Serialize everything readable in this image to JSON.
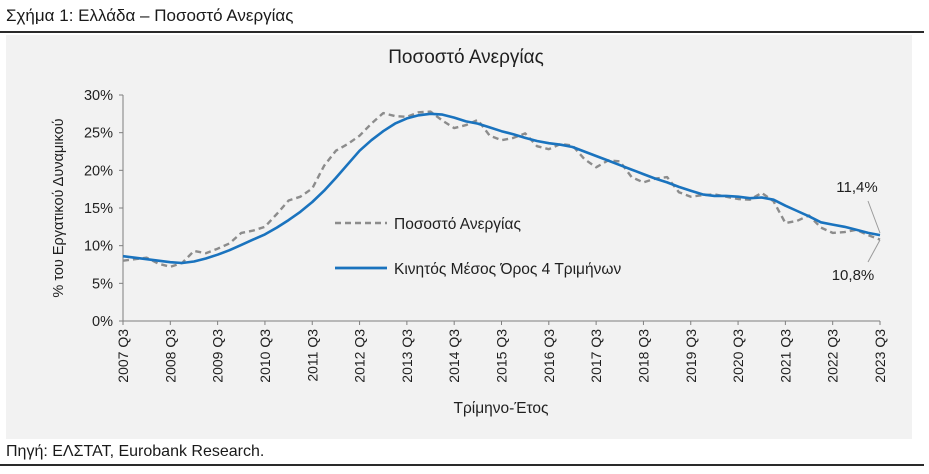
{
  "figure": {
    "title": "Σχήμα 1: Ελλάδα – Ποσοστό Ανεργίας",
    "source": "Πηγή: ΕΛΣΤΑΤ, Eurobank Research."
  },
  "chart_data": {
    "type": "line",
    "title": "Ποσοστό Ανεργίας",
    "xlabel": "Τρίμηνο-Έτος",
    "ylabel": "% του Εργατικού Δυναμικού",
    "ylim": [
      0,
      30
    ],
    "yticks": [
      "0%",
      "5%",
      "10%",
      "15%",
      "20%",
      "25%",
      "30%"
    ],
    "xticks": [
      "2007 Q3",
      "2008 Q3",
      "2009 Q3",
      "2010 Q3",
      "2011 Q3",
      "2012 Q3",
      "2013 Q3",
      "2014 Q3",
      "2015 Q3",
      "2016 Q3",
      "2017 Q3",
      "2018 Q3",
      "2019 Q3",
      "2020 Q3",
      "2021 Q3",
      "2022 Q3",
      "2023 Q3"
    ],
    "grid": false,
    "legend_position": "center",
    "x": [
      "2007 Q3",
      "2007 Q4",
      "2008 Q1",
      "2008 Q2",
      "2008 Q3",
      "2008 Q4",
      "2009 Q1",
      "2009 Q2",
      "2009 Q3",
      "2009 Q4",
      "2010 Q1",
      "2010 Q2",
      "2010 Q3",
      "2010 Q4",
      "2011 Q1",
      "2011 Q2",
      "2011 Q3",
      "2011 Q4",
      "2012 Q1",
      "2012 Q2",
      "2012 Q3",
      "2012 Q4",
      "2013 Q1",
      "2013 Q2",
      "2013 Q3",
      "2013 Q4",
      "2014 Q1",
      "2014 Q2",
      "2014 Q3",
      "2014 Q4",
      "2015 Q1",
      "2015 Q2",
      "2015 Q3",
      "2015 Q4",
      "2016 Q1",
      "2016 Q2",
      "2016 Q3",
      "2016 Q4",
      "2017 Q1",
      "2017 Q2",
      "2017 Q3",
      "2017 Q4",
      "2018 Q1",
      "2018 Q2",
      "2018 Q3",
      "2018 Q4",
      "2019 Q1",
      "2019 Q2",
      "2019 Q3",
      "2019 Q4",
      "2020 Q1",
      "2020 Q2",
      "2020 Q3",
      "2020 Q4",
      "2021 Q1",
      "2021 Q2",
      "2021 Q3",
      "2021 Q4",
      "2022 Q1",
      "2022 Q2",
      "2022 Q3",
      "2022 Q4",
      "2023 Q1",
      "2023 Q2",
      "2023 Q3"
    ],
    "series": [
      {
        "name": "Ποσοστό Ανεργίας",
        "style": "dashed",
        "color": "#8c8c8c",
        "values": [
          8.0,
          8.2,
          8.4,
          7.6,
          7.2,
          7.7,
          9.3,
          9.0,
          9.6,
          10.3,
          11.7,
          12.0,
          12.5,
          14.2,
          16.0,
          16.5,
          17.6,
          20.6,
          22.6,
          23.5,
          24.6,
          26.2,
          27.6,
          27.2,
          27.1,
          27.7,
          27.8,
          26.6,
          25.6,
          26.0,
          26.7,
          24.6,
          24.0,
          24.3,
          24.9,
          23.2,
          22.8,
          23.5,
          23.3,
          21.5,
          20.4,
          21.3,
          21.2,
          19.1,
          18.4,
          18.9,
          19.1,
          17.1,
          16.5,
          16.7,
          16.8,
          16.5,
          16.2,
          16.1,
          17.0,
          15.9,
          13.0,
          13.3,
          14.0,
          12.4,
          11.7,
          11.8,
          12.1,
          11.4,
          10.8
        ]
      },
      {
        "name": "Κινητός Μέσος Όρος 4 Τριμήνων",
        "style": "solid",
        "color": "#1a73be",
        "values": [
          8.6,
          8.4,
          8.2,
          8.0,
          7.8,
          7.7,
          7.9,
          8.3,
          8.8,
          9.4,
          10.1,
          10.8,
          11.5,
          12.4,
          13.4,
          14.5,
          15.8,
          17.3,
          19.0,
          20.8,
          22.6,
          24.0,
          25.2,
          26.2,
          26.9,
          27.3,
          27.5,
          27.4,
          27.0,
          26.5,
          26.2,
          25.7,
          25.2,
          24.8,
          24.3,
          23.9,
          23.6,
          23.4,
          23.1,
          22.5,
          21.9,
          21.3,
          20.7,
          20.1,
          19.5,
          18.9,
          18.4,
          17.8,
          17.3,
          16.8,
          16.6,
          16.6,
          16.5,
          16.3,
          16.4,
          16.1,
          15.3,
          14.6,
          13.9,
          13.1,
          12.8,
          12.5,
          12.1,
          11.7,
          11.4
        ]
      }
    ],
    "annotations": [
      "11,4%",
      "10,8%"
    ]
  }
}
